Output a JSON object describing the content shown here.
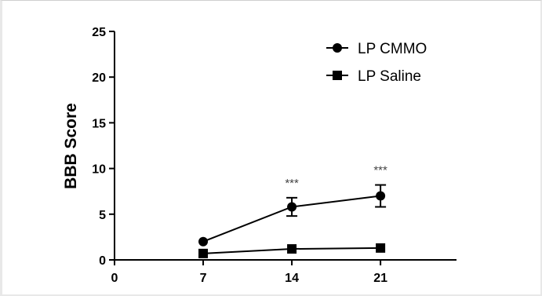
{
  "chart_data": {
    "type": "line",
    "title": "",
    "xlabel": "",
    "ylabel": "BBB Score",
    "x_ticks": [
      "0",
      "7",
      "14",
      "21"
    ],
    "y_ticks": [
      "0",
      "5",
      "10",
      "15",
      "20",
      "25"
    ],
    "xlim": [
      0,
      27
    ],
    "ylim": [
      0,
      25
    ],
    "grid": false,
    "legend_position": "top-right",
    "x": [
      7,
      14,
      21
    ],
    "series": [
      {
        "name": "LP CMMO",
        "marker": "circle",
        "values": [
          2.0,
          5.8,
          7.0
        ],
        "error": [
          0.0,
          1.0,
          1.2
        ]
      },
      {
        "name": "LP Saline",
        "marker": "square",
        "values": [
          0.7,
          1.2,
          1.3
        ],
        "error": [
          0.0,
          0.0,
          0.0
        ]
      }
    ],
    "annotations": [
      {
        "x": 14,
        "text": "***"
      },
      {
        "x": 21,
        "text": "***"
      }
    ],
    "colors": {
      "line": "#000000",
      "annotation": "#444444"
    }
  }
}
